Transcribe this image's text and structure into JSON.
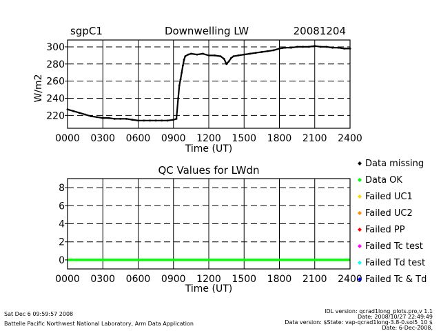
{
  "header": {
    "site": "sgpC1",
    "date": "20081204"
  },
  "chart_data": [
    {
      "type": "scatter",
      "title": "Downwelling LW",
      "xlabel": "Time (UT)",
      "ylabel": "W/m2",
      "xlim": [
        0,
        24
      ],
      "ylim": [
        205,
        308
      ],
      "x_ticks": [
        0,
        3,
        6,
        9,
        12,
        15,
        18,
        21,
        24
      ],
      "x_tick_labels": [
        "0000",
        "0300",
        "0600",
        "0900",
        "1200",
        "1500",
        "1800",
        "2100",
        "2400"
      ],
      "y_ticks": [
        220,
        240,
        260,
        280,
        300
      ],
      "y_tick_labels": [
        "220",
        "240",
        "260",
        "280",
        "300"
      ],
      "grid": true,
      "series": [
        {
          "name": "LWdn",
          "x": [
            0,
            0.5,
            1,
            1.5,
            2,
            2.5,
            3,
            3.5,
            4,
            4.5,
            5,
            5.5,
            6,
            6.5,
            7,
            7.5,
            8,
            8.5,
            9,
            9.25,
            9.4,
            9.5,
            9.6,
            9.7,
            9.8,
            9.9,
            10,
            10.25,
            10.5,
            11,
            11.5,
            12,
            12.5,
            13,
            13.3,
            13.5,
            13.7,
            13.9,
            14.1,
            14.5,
            15,
            15.5,
            16,
            16.5,
            17,
            17.5,
            18,
            18.5,
            19,
            19.5,
            20,
            20.5,
            21,
            21.5,
            22,
            22.5,
            23,
            23.5,
            24
          ],
          "y": [
            227,
            225,
            223,
            221,
            219,
            218,
            217,
            217,
            216,
            216,
            216,
            215,
            214,
            214,
            214,
            214,
            214,
            214,
            215,
            216,
            240,
            255,
            262,
            270,
            278,
            285,
            289,
            291,
            292,
            291,
            292,
            290,
            290,
            289,
            286,
            280,
            283,
            287,
            289,
            290,
            291,
            292,
            293,
            294,
            295,
            296,
            298,
            299,
            299,
            300,
            300,
            300,
            301,
            300,
            300,
            299,
            299,
            298,
            298
          ]
        }
      ]
    },
    {
      "type": "scatter",
      "title": "QC Values for LWdn",
      "xlabel": "Time (UT)",
      "ylabel": "",
      "xlim": [
        0,
        24
      ],
      "ylim": [
        -1,
        9
      ],
      "x_ticks": [
        0,
        3,
        6,
        9,
        12,
        15,
        18,
        21,
        24
      ],
      "x_tick_labels": [
        "0000",
        "0300",
        "0600",
        "0900",
        "1200",
        "1500",
        "1800",
        "2100",
        "2400"
      ],
      "y_ticks": [
        0,
        2,
        4,
        6,
        8
      ],
      "y_tick_labels": [
        "0",
        "2",
        "4",
        "6",
        "8"
      ],
      "grid": true,
      "series": [
        {
          "name": "QC",
          "x": [
            0,
            24
          ],
          "y": [
            0,
            0
          ],
          "color": "#00ff00"
        }
      ],
      "legend": [
        {
          "label": "Data missing",
          "color": "#000000"
        },
        {
          "label": "Data OK",
          "color": "#00ff00"
        },
        {
          "label": "Failed UC1",
          "color": "#ffd400"
        },
        {
          "label": "Failed UC2",
          "color": "#ff8c00"
        },
        {
          "label": "Failed PP",
          "color": "#ff0000"
        },
        {
          "label": "Failed Tc test",
          "color": "#ff00ff"
        },
        {
          "label": "Failed Td test",
          "color": "#00ffff"
        },
        {
          "label": "Failed Tc & Td",
          "color": "#0000ff"
        }
      ]
    }
  ],
  "footer": {
    "timestamp": "Sat Dec  6 09:59:57 2008",
    "org": "Battelle Pacific Northwest National Laboratory, Arm Data Application",
    "idl_version": "IDL version: qcrad1long_plots.pro,v 1.1",
    "idl_date": "Date: 2008/10/27 22:49:49",
    "data_version": "Data version: $State: vap-qcrad1long-3.8-0.sol5_10 $",
    "data_date": "Date: 6-Dec-2008,"
  }
}
